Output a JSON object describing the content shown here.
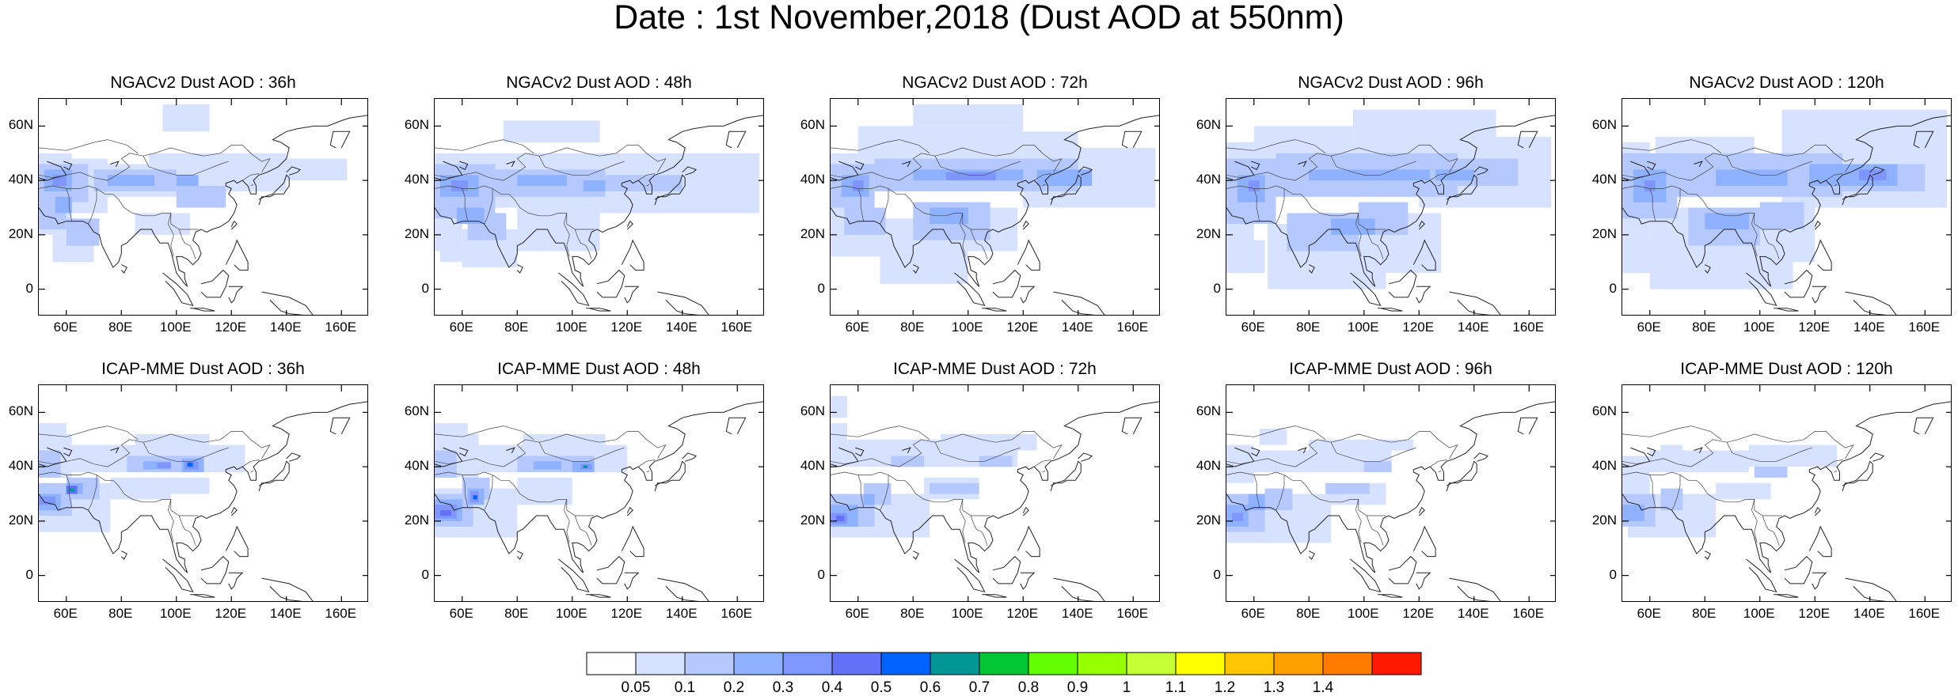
{
  "title": "Date : 1st November,2018 (Dust AOD at 550nm)",
  "map_extent": {
    "lon_min": 50,
    "lon_max": 170,
    "lat_min": -10,
    "lat_max": 70
  },
  "lat_ticks": [
    "60N",
    "40N",
    "20N",
    "0"
  ],
  "lat_tick_values": [
    60,
    40,
    20,
    0
  ],
  "lon_ticks": [
    "60E",
    "80E",
    "100E",
    "120E",
    "140E",
    "160E"
  ],
  "lon_tick_values": [
    60,
    80,
    100,
    120,
    140,
    160
  ],
  "panels": [
    {
      "title": "NGACv2 Dust AOD : 36h",
      "model": "ngac",
      "lead": 36
    },
    {
      "title": "NGACv2 Dust AOD : 48h",
      "model": "ngac",
      "lead": 48
    },
    {
      "title": "NGACv2 Dust AOD : 72h",
      "model": "ngac",
      "lead": 72
    },
    {
      "title": "NGACv2 Dust AOD : 96h",
      "model": "ngac",
      "lead": 96
    },
    {
      "title": "NGACv2 Dust AOD : 120h",
      "model": "ngac",
      "lead": 120
    },
    {
      "title": "ICAP-MME Dust AOD : 36h",
      "model": "icap",
      "lead": 36
    },
    {
      "title": "ICAP-MME Dust AOD : 48h",
      "model": "icap",
      "lead": 48
    },
    {
      "title": "ICAP-MME Dust AOD : 72h",
      "model": "icap",
      "lead": 72
    },
    {
      "title": "ICAP-MME Dust AOD : 96h",
      "model": "icap",
      "lead": 96
    },
    {
      "title": "ICAP-MME Dust AOD : 120h",
      "model": "icap",
      "lead": 120
    }
  ],
  "colorbar": {
    "labels": [
      "0.05",
      "0.1",
      "0.2",
      "0.3",
      "0.4",
      "0.5",
      "0.6",
      "0.7",
      "0.8",
      "0.9",
      "1",
      "1.1",
      "1.2",
      "1.3",
      "1.4"
    ],
    "colors": [
      "#ffffff",
      "#d6e2ff",
      "#b5c9ff",
      "#8eb2ff",
      "#7f96ff",
      "#6370f8",
      "#0063ff",
      "#009696",
      "#00c633",
      "#63ff00",
      "#96ff00",
      "#c6ff33",
      "#ffff00",
      "#ffc600",
      "#ffa000",
      "#ff7c00",
      "#ff1900"
    ]
  }
}
